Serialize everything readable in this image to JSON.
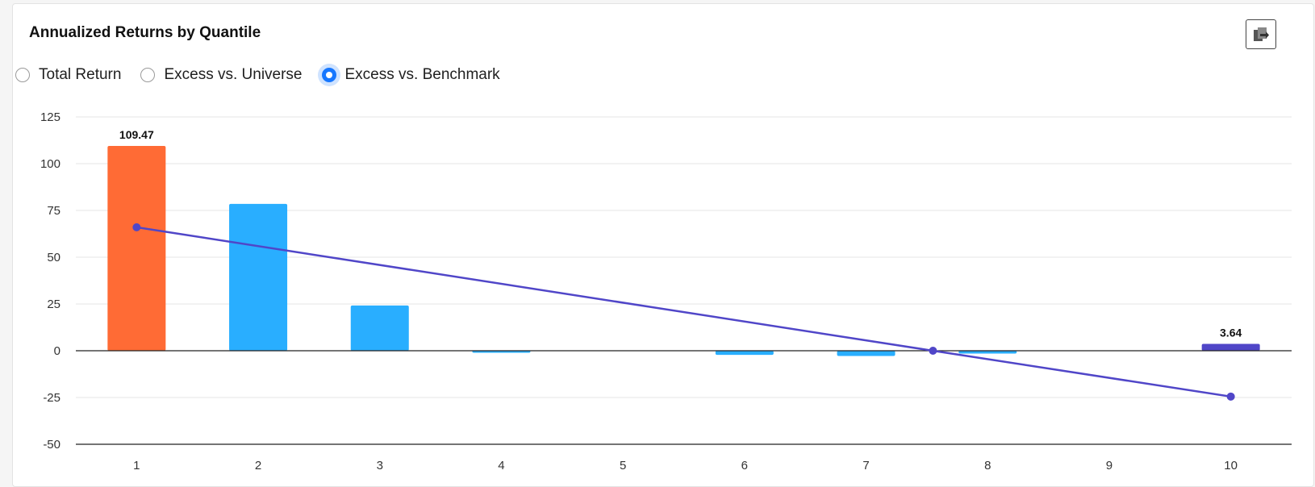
{
  "header": {
    "title": "Annualized Returns by Quantile"
  },
  "toolbar": {
    "export_icon": "export-image-icon"
  },
  "radio_group": {
    "selected": "Excess vs. Benchmark",
    "options": [
      {
        "label": "Total Return",
        "checked": false
      },
      {
        "label": "Excess vs. Universe",
        "checked": false
      },
      {
        "label": "Excess vs. Benchmark",
        "checked": true
      }
    ]
  },
  "colors": {
    "positive_top": "#ff6b35",
    "default_bar": "#29aeff",
    "bottom_bar": "#5046c8",
    "trend_line": "#5046c8",
    "grid": "#e6e6e6",
    "axis": "#222222"
  },
  "chart_data": {
    "type": "bar",
    "title": "Annualized Returns by Quantile",
    "xlabel": "",
    "ylabel": "",
    "ylim": [
      -50,
      125
    ],
    "yticks": [
      125,
      100,
      75,
      50,
      25,
      0,
      -25,
      -50
    ],
    "grid": true,
    "legend": "none",
    "categories": [
      "1",
      "2",
      "3",
      "4",
      "5",
      "6",
      "7",
      "8",
      "9",
      "10"
    ],
    "series": [
      {
        "type": "bar",
        "values": [
          109.47,
          78.5,
          24.2,
          -0.6,
          0,
          -2.2,
          -2.8,
          -1.5,
          0,
          3.64
        ],
        "colors": [
          "#ff6b35",
          "#29aeff",
          "#29aeff",
          "#29aeff",
          "#29aeff",
          "#29aeff",
          "#29aeff",
          "#29aeff",
          "#29aeff",
          "#5046c8"
        ],
        "data_labels": [
          "109.47",
          "",
          "",
          "",
          "",
          "",
          "",
          "",
          "",
          "3.64"
        ]
      },
      {
        "type": "line",
        "points": [
          {
            "x": 1,
            "y": 66
          },
          {
            "x": 7.55,
            "y": 0
          },
          {
            "x": 10,
            "y": -24.5
          }
        ]
      }
    ]
  }
}
